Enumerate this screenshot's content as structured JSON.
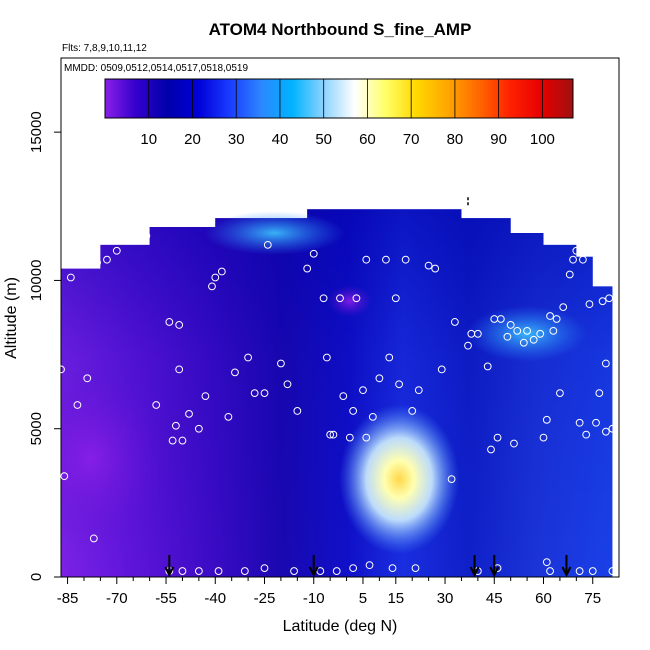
{
  "chart_data": {
    "type": "heatmap",
    "title": "ATOM4 Northbound S_fine_AMP",
    "subtitle_flights": "Flts: 7,8,9,10,11,12",
    "subtitle_dates": "MMDD: 0509,0512,0514,0517,0518,0519",
    "xlabel": "Latitude (deg N)",
    "ylabel": "Altitude (m)",
    "xlim": [
      -87,
      83
    ],
    "ylim": [
      0,
      17500
    ],
    "x_ticks": [
      -85,
      -70,
      -55,
      -40,
      -25,
      -10,
      5,
      15,
      30,
      45,
      60,
      75
    ],
    "y_ticks": [
      0,
      5000,
      10000,
      15000
    ],
    "colorbar": {
      "min": 0,
      "max": 107,
      "ticks": [
        10,
        20,
        30,
        40,
        50,
        60,
        70,
        80,
        90,
        100
      ],
      "colors": [
        "#8a1fe8",
        "#3300cc",
        "#0000aa",
        "#0000d8",
        "#1a3cff",
        "#2d86ff",
        "#00b3ff",
        "#8cd2ff",
        "#ffffff",
        "#ffff66",
        "#ffd700",
        "#ffa500",
        "#ff6600",
        "#ff2000",
        "#e60000",
        "#a01010"
      ]
    },
    "profile_markers_lat": [
      -54,
      -10,
      39,
      45,
      67
    ],
    "observations": [
      {
        "lat": -86,
        "alt": 3400
      },
      {
        "lat": -87,
        "alt": 7000
      },
      {
        "lat": -84,
        "alt": 10100
      },
      {
        "lat": -82,
        "alt": 5800
      },
      {
        "lat": -79,
        "alt": 6700
      },
      {
        "lat": -76,
        "alt": 10600
      },
      {
        "lat": -73,
        "alt": 10700
      },
      {
        "lat": -70,
        "alt": 11000
      },
      {
        "lat": -67,
        "alt": 11400
      },
      {
        "lat": -64,
        "alt": 11500
      },
      {
        "lat": -61,
        "alt": 11500
      },
      {
        "lat": -58,
        "alt": 5800
      },
      {
        "lat": -54,
        "alt": 8600
      },
      {
        "lat": -53,
        "alt": 4600
      },
      {
        "lat": -52,
        "alt": 5100
      },
      {
        "lat": -51,
        "alt": 7000
      },
      {
        "lat": -51,
        "alt": 8500
      },
      {
        "lat": -50,
        "alt": 4600
      },
      {
        "lat": -48,
        "alt": 5500
      },
      {
        "lat": -45,
        "alt": 5000
      },
      {
        "lat": -43,
        "alt": 6100
      },
      {
        "lat": -41,
        "alt": 9800
      },
      {
        "lat": -40,
        "alt": 10100
      },
      {
        "lat": -38,
        "alt": 10300
      },
      {
        "lat": -36,
        "alt": 5400
      },
      {
        "lat": -34,
        "alt": 6900
      },
      {
        "lat": -30,
        "alt": 7400
      },
      {
        "lat": -28,
        "alt": 6200
      },
      {
        "lat": -25,
        "alt": 6200
      },
      {
        "lat": -24,
        "alt": 11200
      },
      {
        "lat": -20,
        "alt": 7200
      },
      {
        "lat": -18,
        "alt": 6500
      },
      {
        "lat": -15,
        "alt": 5600
      },
      {
        "lat": -12,
        "alt": 10400
      },
      {
        "lat": -10,
        "alt": 10900
      },
      {
        "lat": -7,
        "alt": 9400
      },
      {
        "lat": -6,
        "alt": 7400
      },
      {
        "lat": -5,
        "alt": 4800
      },
      {
        "lat": -4,
        "alt": 4800
      },
      {
        "lat": -2,
        "alt": 9400
      },
      {
        "lat": -1,
        "alt": 6100
      },
      {
        "lat": 1,
        "alt": 4700
      },
      {
        "lat": 2,
        "alt": 5600
      },
      {
        "lat": 3,
        "alt": 9400
      },
      {
        "lat": 5,
        "alt": 6300
      },
      {
        "lat": 6,
        "alt": 4700
      },
      {
        "lat": 6,
        "alt": 10700
      },
      {
        "lat": 8,
        "alt": 5400
      },
      {
        "lat": 10,
        "alt": 6700
      },
      {
        "lat": 12,
        "alt": 10700
      },
      {
        "lat": 13,
        "alt": 7400
      },
      {
        "lat": 15,
        "alt": 9400
      },
      {
        "lat": 16,
        "alt": 6500
      },
      {
        "lat": 18,
        "alt": 10700
      },
      {
        "lat": 20,
        "alt": 5600
      },
      {
        "lat": 22,
        "alt": 6300
      },
      {
        "lat": 25,
        "alt": 10500
      },
      {
        "lat": 27,
        "alt": 10400
      },
      {
        "lat": 29,
        "alt": 7000
      },
      {
        "lat": 32,
        "alt": 3300
      },
      {
        "lat": 33,
        "alt": 8600
      },
      {
        "lat": 37,
        "alt": 7800
      },
      {
        "lat": 38,
        "alt": 8200
      },
      {
        "lat": 40,
        "alt": 8200
      },
      {
        "lat": 43,
        "alt": 7100
      },
      {
        "lat": 44,
        "alt": 4300
      },
      {
        "lat": 45,
        "alt": 8700
      },
      {
        "lat": 46,
        "alt": 4700
      },
      {
        "lat": 47,
        "alt": 8700
      },
      {
        "lat": 49,
        "alt": 8100
      },
      {
        "lat": 50,
        "alt": 8500
      },
      {
        "lat": 51,
        "alt": 4500
      },
      {
        "lat": 52,
        "alt": 8300
      },
      {
        "lat": 54,
        "alt": 7900
      },
      {
        "lat": 55,
        "alt": 8300
      },
      {
        "lat": 57,
        "alt": 8000
      },
      {
        "lat": 59,
        "alt": 8200
      },
      {
        "lat": 60,
        "alt": 4700
      },
      {
        "lat": 61,
        "alt": 5300
      },
      {
        "lat": 62,
        "alt": 8800
      },
      {
        "lat": 63,
        "alt": 8300
      },
      {
        "lat": 64,
        "alt": 8700
      },
      {
        "lat": 65,
        "alt": 6200
      },
      {
        "lat": 66,
        "alt": 9100
      },
      {
        "lat": 68,
        "alt": 10200
      },
      {
        "lat": 69,
        "alt": 10700
      },
      {
        "lat": 70,
        "alt": 11000
      },
      {
        "lat": 71,
        "alt": 5200
      },
      {
        "lat": 72,
        "alt": 10700
      },
      {
        "lat": 73,
        "alt": 4800
      },
      {
        "lat": 74,
        "alt": 9200
      },
      {
        "lat": 76,
        "alt": 5200
      },
      {
        "lat": 77,
        "alt": 6200
      },
      {
        "lat": 78,
        "alt": 9300
      },
      {
        "lat": 79,
        "alt": 4900
      },
      {
        "lat": 80,
        "alt": 9400
      },
      {
        "lat": 81,
        "alt": 5000
      },
      {
        "lat": 79,
        "alt": 7200
      },
      {
        "lat": -54,
        "alt": 200
      },
      {
        "lat": -50,
        "alt": 200
      },
      {
        "lat": -45,
        "alt": 200
      },
      {
        "lat": -39,
        "alt": 200
      },
      {
        "lat": -31,
        "alt": 200
      },
      {
        "lat": -25,
        "alt": 300
      },
      {
        "lat": -16,
        "alt": 200
      },
      {
        "lat": -8,
        "alt": 200
      },
      {
        "lat": -3,
        "alt": 200
      },
      {
        "lat": 2,
        "alt": 300
      },
      {
        "lat": 7,
        "alt": 400
      },
      {
        "lat": 14,
        "alt": 300
      },
      {
        "lat": 21,
        "alt": 300
      },
      {
        "lat": 40,
        "alt": 200
      },
      {
        "lat": 46,
        "alt": 300
      },
      {
        "lat": 61,
        "alt": 500
      },
      {
        "lat": 62,
        "alt": 200
      },
      {
        "lat": 71,
        "alt": 200
      },
      {
        "lat": 75,
        "alt": 200
      },
      {
        "lat": 81,
        "alt": 200
      },
      {
        "lat": -77,
        "alt": 1300
      }
    ]
  }
}
